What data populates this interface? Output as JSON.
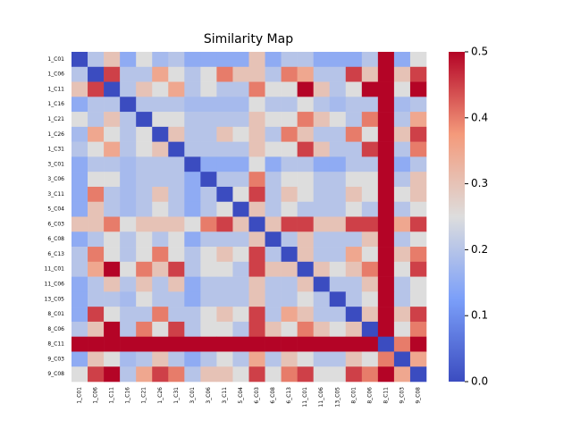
{
  "chart_data": {
    "type": "heatmap",
    "title": "Similarity Map",
    "categories": [
      "1_C01",
      "1_C06",
      "1_C11",
      "1_C16",
      "1_C21",
      "1_C26",
      "1_C31",
      "3_C01",
      "3_C06",
      "3_C11",
      "5_C04",
      "6_C03",
      "6_C08",
      "6_C13",
      "11_C01",
      "11_C06",
      "13_C05",
      "8_C01",
      "8_C06",
      "8_C11",
      "9_C03",
      "9_C08"
    ],
    "values": [
      [
        0,
        0.2,
        0.3,
        0.15,
        0.25,
        0.18,
        0.2,
        0.15,
        0.15,
        0.15,
        0.15,
        0.3,
        0.15,
        0.2,
        0.2,
        0.15,
        0.15,
        0.15,
        0.2,
        0.5,
        0.15,
        0.25
      ],
      [
        0.2,
        0,
        0.45,
        0.2,
        0.2,
        0.35,
        0.25,
        0.2,
        0.25,
        0.4,
        0.3,
        0.3,
        0.2,
        0.4,
        0.35,
        0.2,
        0.2,
        0.45,
        0.3,
        0.55,
        0.3,
        0.45
      ],
      [
        0.3,
        0.45,
        0,
        0.2,
        0.3,
        0.25,
        0.35,
        0.2,
        0.25,
        0.2,
        0.2,
        0.4,
        0.25,
        0.25,
        0.5,
        0.3,
        0.2,
        0.25,
        0.5,
        0.55,
        0.25,
        0.5
      ],
      [
        0.15,
        0.2,
        0.2,
        0,
        0.2,
        0.2,
        0.2,
        0.18,
        0.18,
        0.18,
        0.18,
        0.25,
        0.2,
        0.2,
        0.25,
        0.2,
        0.18,
        0.2,
        0.2,
        0.5,
        0.18,
        0.2
      ],
      [
        0.25,
        0.2,
        0.3,
        0.2,
        0,
        0.25,
        0.25,
        0.2,
        0.2,
        0.2,
        0.2,
        0.3,
        0.25,
        0.25,
        0.4,
        0.3,
        0.25,
        0.2,
        0.4,
        0.55,
        0.2,
        0.35
      ],
      [
        0.18,
        0.35,
        0.25,
        0.2,
        0.25,
        0,
        0.3,
        0.2,
        0.2,
        0.3,
        0.25,
        0.3,
        0.2,
        0.4,
        0.3,
        0.2,
        0.2,
        0.4,
        0.25,
        0.55,
        0.3,
        0.45
      ],
      [
        0.2,
        0.25,
        0.35,
        0.2,
        0.25,
        0.3,
        0,
        0.2,
        0.2,
        0.2,
        0.2,
        0.3,
        0.25,
        0.25,
        0.45,
        0.3,
        0.2,
        0.2,
        0.45,
        0.55,
        0.2,
        0.4
      ],
      [
        0.15,
        0.2,
        0.2,
        0.18,
        0.2,
        0.2,
        0.2,
        0,
        0.15,
        0.15,
        0.15,
        0.25,
        0.15,
        0.2,
        0.2,
        0.15,
        0.15,
        0.2,
        0.2,
        0.5,
        0.15,
        0.2
      ],
      [
        0.15,
        0.25,
        0.25,
        0.18,
        0.2,
        0.2,
        0.2,
        0.15,
        0,
        0.2,
        0.2,
        0.4,
        0.2,
        0.25,
        0.25,
        0.2,
        0.2,
        0.25,
        0.25,
        0.5,
        0.2,
        0.3
      ],
      [
        0.15,
        0.4,
        0.2,
        0.18,
        0.2,
        0.3,
        0.2,
        0.15,
        0.2,
        0,
        0.25,
        0.45,
        0.2,
        0.3,
        0.25,
        0.2,
        0.2,
        0.3,
        0.25,
        0.55,
        0.25,
        0.3
      ],
      [
        0.15,
        0.3,
        0.2,
        0.18,
        0.2,
        0.25,
        0.2,
        0.15,
        0.2,
        0.25,
        0,
        0.3,
        0.2,
        0.25,
        0.2,
        0.2,
        0.2,
        0.25,
        0.2,
        0.5,
        0.2,
        0.25
      ],
      [
        0.3,
        0.3,
        0.4,
        0.25,
        0.3,
        0.3,
        0.3,
        0.25,
        0.4,
        0.45,
        0.3,
        0,
        0.3,
        0.45,
        0.45,
        0.3,
        0.3,
        0.45,
        0.45,
        0.6,
        0.35,
        0.45
      ],
      [
        0.15,
        0.2,
        0.25,
        0.2,
        0.25,
        0.2,
        0.25,
        0.15,
        0.2,
        0.2,
        0.2,
        0.3,
        0,
        0.2,
        0.3,
        0.2,
        0.2,
        0.2,
        0.3,
        0.5,
        0.2,
        0.25
      ],
      [
        0.2,
        0.4,
        0.25,
        0.2,
        0.25,
        0.4,
        0.25,
        0.2,
        0.25,
        0.3,
        0.25,
        0.45,
        0.2,
        0,
        0.3,
        0.2,
        0.2,
        0.35,
        0.25,
        0.55,
        0.3,
        0.4
      ],
      [
        0.2,
        0.35,
        0.5,
        0.25,
        0.4,
        0.3,
        0.45,
        0.2,
        0.25,
        0.25,
        0.2,
        0.45,
        0.3,
        0.3,
        0,
        0.3,
        0.25,
        0.3,
        0.4,
        0.55,
        0.25,
        0.45
      ],
      [
        0.15,
        0.2,
        0.3,
        0.2,
        0.3,
        0.2,
        0.3,
        0.15,
        0.2,
        0.2,
        0.2,
        0.3,
        0.2,
        0.2,
        0.3,
        0,
        0.2,
        0.2,
        0.3,
        0.5,
        0.2,
        0.25
      ],
      [
        0.15,
        0.2,
        0.2,
        0.18,
        0.25,
        0.2,
        0.2,
        0.15,
        0.2,
        0.2,
        0.2,
        0.3,
        0.2,
        0.2,
        0.25,
        0.2,
        0,
        0.2,
        0.25,
        0.5,
        0.2,
        0.25
      ],
      [
        0.15,
        0.45,
        0.25,
        0.2,
        0.2,
        0.4,
        0.2,
        0.2,
        0.25,
        0.3,
        0.25,
        0.45,
        0.2,
        0.35,
        0.3,
        0.2,
        0.2,
        0,
        0.3,
        0.55,
        0.3,
        0.45
      ],
      [
        0.2,
        0.3,
        0.5,
        0.2,
        0.4,
        0.25,
        0.45,
        0.2,
        0.25,
        0.25,
        0.2,
        0.45,
        0.3,
        0.25,
        0.4,
        0.3,
        0.25,
        0.3,
        0,
        0.55,
        0.25,
        0.4
      ],
      [
        0.5,
        0.55,
        0.55,
        0.5,
        0.55,
        0.55,
        0.55,
        0.5,
        0.5,
        0.55,
        0.5,
        0.6,
        0.5,
        0.55,
        0.55,
        0.5,
        0.5,
        0.55,
        0.55,
        0,
        0.4,
        0.55
      ],
      [
        0.15,
        0.3,
        0.25,
        0.18,
        0.2,
        0.3,
        0.2,
        0.15,
        0.2,
        0.25,
        0.2,
        0.35,
        0.2,
        0.3,
        0.25,
        0.2,
        0.2,
        0.3,
        0.25,
        0.4,
        0,
        0.35
      ],
      [
        0.25,
        0.45,
        0.5,
        0.2,
        0.35,
        0.45,
        0.4,
        0.2,
        0.3,
        0.3,
        0.25,
        0.45,
        0.25,
        0.4,
        0.45,
        0.25,
        0.25,
        0.45,
        0.4,
        0.55,
        0.35,
        0
      ]
    ],
    "colors": [
      "#3b4cc0",
      "#7b9ff9",
      "#dddddd",
      "#f49a7b",
      "#b40426"
    ],
    "clim": [
      0,
      0.5
    ],
    "cticks": [
      {
        "value": 0,
        "label": "0.0"
      },
      {
        "value": 0.1,
        "label": "0.1"
      },
      {
        "value": 0.2,
        "label": "0.2"
      },
      {
        "value": 0.3,
        "label": "0.3"
      },
      {
        "value": 0.4,
        "label": "0.4"
      },
      {
        "value": 0.5,
        "label": "0.5"
      }
    ]
  }
}
